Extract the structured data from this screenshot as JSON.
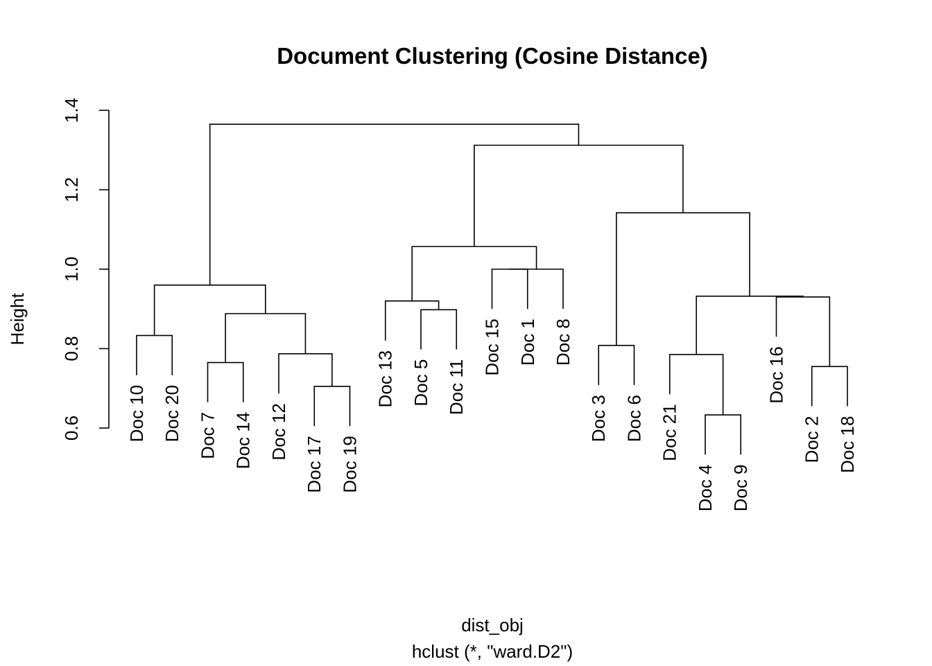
{
  "chart_data": {
    "type": "dendrogram",
    "title": "Document Clustering (Cosine Distance)",
    "xlabel": "dist_obj",
    "xsublabel": "hclust (*, \"ward.D2\")",
    "ylabel": "Height",
    "ylim": [
      0.6,
      1.4
    ],
    "yticks": [
      "0.6",
      "0.8",
      "1.0",
      "1.2",
      "1.4"
    ],
    "hang": 0.1,
    "leaves": [
      "Doc 10",
      "Doc 20",
      "Doc 7",
      "Doc 14",
      "Doc 12",
      "Doc 17",
      "Doc 19",
      "Doc 13",
      "Doc 5",
      "Doc 11",
      "Doc 15",
      "Doc 1",
      "Doc 8",
      "Doc 3",
      "Doc 6",
      "Doc 21",
      "Doc 4",
      "Doc 9",
      "Doc 16",
      "Doc 2",
      "Doc 18"
    ],
    "merges": [
      {
        "id": "A",
        "left": "Doc 10",
        "right": "Doc 20",
        "height": 0.833
      },
      {
        "id": "B",
        "left": "Doc 7",
        "right": "Doc 14",
        "height": 0.765
      },
      {
        "id": "C",
        "left": "Doc 17",
        "right": "Doc 19",
        "height": 0.705
      },
      {
        "id": "D",
        "left": "Doc 12",
        "right": "C",
        "height": 0.787
      },
      {
        "id": "E",
        "left": "B",
        "right": "D",
        "height": 0.888
      },
      {
        "id": "F",
        "left": "A",
        "right": "E",
        "height": 0.96
      },
      {
        "id": "G",
        "left": "Doc 5",
        "right": "Doc 11",
        "height": 0.898
      },
      {
        "id": "H",
        "left": "Doc 13",
        "right": "G",
        "height": 0.92
      },
      {
        "id": "I",
        "left": "Doc 15",
        "right": "Doc 1",
        "height": 1.0
      },
      {
        "id": "J",
        "left": "I",
        "right": "Doc 8",
        "height": 1.0
      },
      {
        "id": "K",
        "left": "H",
        "right": "J",
        "height": 1.057
      },
      {
        "id": "L",
        "left": "Doc 3",
        "right": "Doc 6",
        "height": 0.808
      },
      {
        "id": "M",
        "left": "Doc 4",
        "right": "Doc 9",
        "height": 0.633
      },
      {
        "id": "N",
        "left": "Doc 21",
        "right": "M",
        "height": 0.785
      },
      {
        "id": "O",
        "left": "Doc 2",
        "right": "Doc 18",
        "height": 0.755
      },
      {
        "id": "P",
        "left": "Doc 16",
        "right": "O",
        "height": 0.93
      },
      {
        "id": "Q",
        "left": "N",
        "right": "P",
        "height": 0.932
      },
      {
        "id": "R",
        "left": "L",
        "right": "Q",
        "height": 1.142
      },
      {
        "id": "S",
        "left": "K",
        "right": "R",
        "height": 1.312
      },
      {
        "id": "T",
        "left": "F",
        "right": "S",
        "height": 1.365
      }
    ]
  }
}
